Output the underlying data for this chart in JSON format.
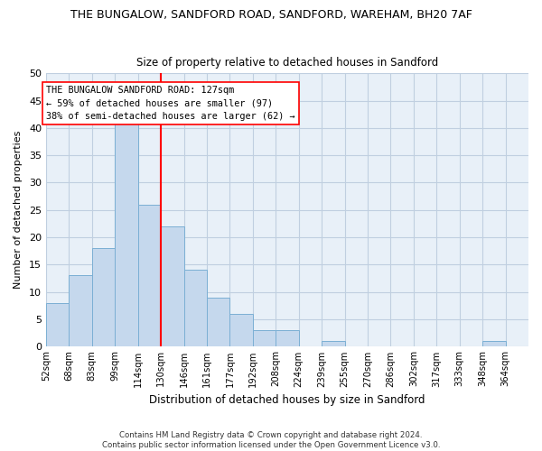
{
  "title": "THE BUNGALOW, SANDFORD ROAD, SANDFORD, WAREHAM, BH20 7AF",
  "subtitle": "Size of property relative to detached houses in Sandford",
  "xlabel": "Distribution of detached houses by size in Sandford",
  "ylabel": "Number of detached properties",
  "bar_color": "#c5d8ed",
  "bar_edge_color": "#7bafd4",
  "bin_labels": [
    "52sqm",
    "68sqm",
    "83sqm",
    "99sqm",
    "114sqm",
    "130sqm",
    "146sqm",
    "161sqm",
    "177sqm",
    "192sqm",
    "208sqm",
    "224sqm",
    "239sqm",
    "255sqm",
    "270sqm",
    "286sqm",
    "302sqm",
    "317sqm",
    "333sqm",
    "348sqm",
    "364sqm"
  ],
  "bar_values": [
    8,
    13,
    18,
    41,
    26,
    22,
    14,
    9,
    6,
    3,
    3,
    0,
    1,
    0,
    0,
    0,
    0,
    0,
    0,
    1,
    0
  ],
  "ylim": [
    0,
    50
  ],
  "yticks": [
    0,
    5,
    10,
    15,
    20,
    25,
    30,
    35,
    40,
    45,
    50
  ],
  "property_line_bin": 5,
  "n_bins": 21,
  "annotation_title": "THE BUNGALOW SANDFORD ROAD: 127sqm",
  "annotation_line1": "← 59% of detached houses are smaller (97)",
  "annotation_line2": "38% of semi-detached houses are larger (62) →",
  "footer_line1": "Contains HM Land Registry data © Crown copyright and database right 2024.",
  "footer_line2": "Contains public sector information licensed under the Open Government Licence v3.0.",
  "bg_color": "#ffffff",
  "plot_bg_color": "#e8f0f8",
  "grid_color": "#c0cfe0"
}
